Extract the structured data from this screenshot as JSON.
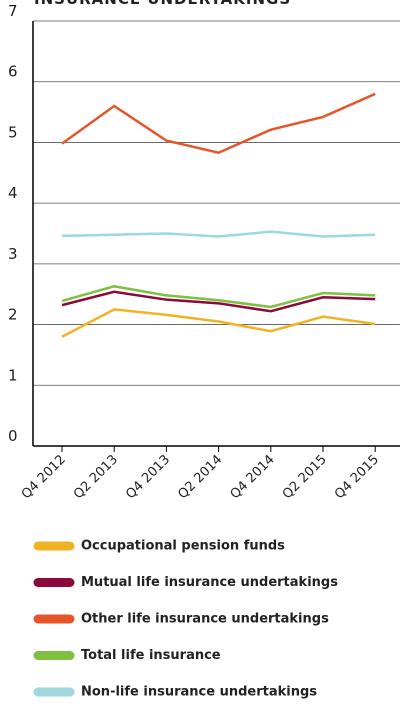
{
  "chart_data": {
    "type": "line",
    "title": "INSURANCE UNDERTAKINGS",
    "categories": [
      "Q4 2012",
      "Q2 2013",
      "Q4 2013",
      "Q2 2014",
      "Q4 2014",
      "Q2 2015",
      "Q4 2015"
    ],
    "series": [
      {
        "name": "Occupational pension funds",
        "color": "#f0b323",
        "values": [
          1.8,
          2.25,
          2.16,
          2.05,
          1.89,
          2.13,
          2.01
        ]
      },
      {
        "name": "Mutual life insurance undertakings",
        "color": "#8b0a3b",
        "values": [
          2.32,
          2.54,
          2.41,
          2.35,
          2.22,
          2.45,
          2.42
        ]
      },
      {
        "name": "Other life insurance undertakings",
        "color": "#e8542a",
        "values": [
          4.98,
          5.6,
          5.03,
          4.83,
          5.21,
          5.42,
          5.8
        ]
      },
      {
        "name": "Total life insurance",
        "color": "#7fbf41",
        "values": [
          2.39,
          2.63,
          2.48,
          2.4,
          2.29,
          2.52,
          2.48
        ]
      },
      {
        "name": "Non-life insurance undertakings",
        "color": "#9ed8dc",
        "values": [
          3.46,
          3.48,
          3.5,
          3.45,
          3.53,
          3.45,
          3.48
        ]
      }
    ],
    "ylim": [
      0,
      7
    ],
    "yticks": [
      0,
      1,
      2,
      3,
      4,
      5,
      6,
      7
    ],
    "grid": true
  }
}
